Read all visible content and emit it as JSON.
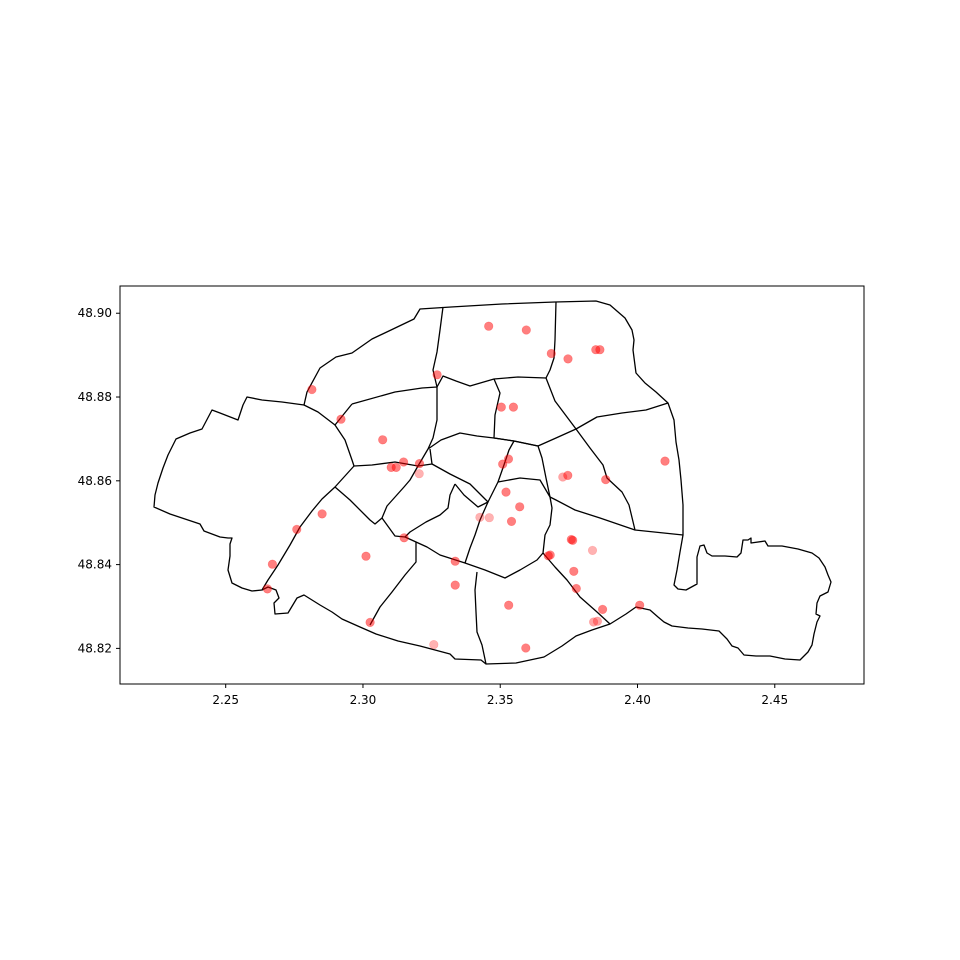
{
  "chart_data": {
    "type": "scatter",
    "title": "",
    "xlabel": "",
    "ylabel": "",
    "xlim": [
      2.2115,
      2.4825
    ],
    "ylim": [
      48.8115,
      48.9065
    ],
    "x_ticks": [
      2.25,
      2.3,
      2.35,
      2.4,
      2.45
    ],
    "x_tick_labels": [
      "2.25",
      "2.30",
      "2.35",
      "2.40",
      "2.45"
    ],
    "y_ticks": [
      48.82,
      48.84,
      48.86,
      48.88,
      48.9
    ],
    "y_tick_labels": [
      "48.82",
      "48.84",
      "48.86",
      "48.88",
      "48.90"
    ],
    "grid": false,
    "point_color": "#ff0000",
    "point_alpha": 0.5,
    "points": [
      [
        2.3458,
        48.8969
      ],
      [
        2.3595,
        48.896
      ],
      [
        2.3863,
        48.8913
      ],
      [
        2.3848,
        48.8913
      ],
      [
        2.3686,
        48.8904
      ],
      [
        2.3747,
        48.8891
      ],
      [
        2.327,
        48.8853
      ],
      [
        2.2814,
        48.8818
      ],
      [
        2.3548,
        48.8776
      ],
      [
        2.3504,
        48.8776
      ],
      [
        2.292,
        48.8747
      ],
      [
        2.3072,
        48.8698
      ],
      [
        2.353,
        48.8652
      ],
      [
        2.3509,
        48.864
      ],
      [
        2.3148,
        48.8645
      ],
      [
        2.3206,
        48.8641
      ],
      [
        2.3103,
        48.8632
      ],
      [
        2.3121,
        48.8632
      ],
      [
        2.41,
        48.8647
      ],
      [
        2.3746,
        48.8613
      ],
      [
        2.3728,
        48.8609
      ],
      [
        2.3884,
        48.8603
      ],
      [
        2.3205,
        48.8617
      ],
      [
        2.3521,
        48.8573
      ],
      [
        2.3571,
        48.8538
      ],
      [
        2.2851,
        48.8521
      ],
      [
        2.3426,
        48.8513
      ],
      [
        2.346,
        48.8512
      ],
      [
        2.3541,
        48.8503
      ],
      [
        2.2759,
        48.8484
      ],
      [
        2.315,
        48.8464
      ],
      [
        2.3759,
        48.846
      ],
      [
        2.3764,
        48.8458
      ],
      [
        2.3836,
        48.8434
      ],
      [
        2.3682,
        48.8423
      ],
      [
        2.3675,
        48.8421
      ],
      [
        2.3011,
        48.842
      ],
      [
        2.3336,
        48.8408
      ],
      [
        2.267,
        48.8401
      ],
      [
        2.3768,
        48.8384
      ],
      [
        2.3336,
        48.8351
      ],
      [
        2.3777,
        48.8343
      ],
      [
        2.2652,
        48.8342
      ],
      [
        2.3531,
        48.8303
      ],
      [
        2.4008,
        48.8303
      ],
      [
        2.3873,
        48.8293
      ],
      [
        2.3854,
        48.8265
      ],
      [
        2.384,
        48.8263
      ],
      [
        2.3026,
        48.8262
      ],
      [
        2.3258,
        48.8209
      ],
      [
        2.3593,
        48.8201
      ]
    ],
    "point_opacity": [
      0.5,
      0.5,
      0.5,
      0.5,
      0.5,
      0.5,
      0.5,
      0.5,
      0.5,
      0.5,
      0.5,
      0.5,
      0.5,
      0.5,
      0.5,
      0.5,
      0.5,
      0.5,
      0.5,
      0.5,
      0.35,
      0.5,
      0.3,
      0.5,
      0.5,
      0.5,
      0.3,
      0.3,
      0.5,
      0.5,
      0.5,
      0.5,
      0.5,
      0.3,
      0.5,
      0.5,
      0.5,
      0.5,
      0.5,
      0.5,
      0.5,
      0.5,
      0.5,
      0.5,
      0.5,
      0.5,
      0.35,
      0.35,
      0.5,
      0.3,
      0.5
    ],
    "outline_color": "#000000"
  }
}
